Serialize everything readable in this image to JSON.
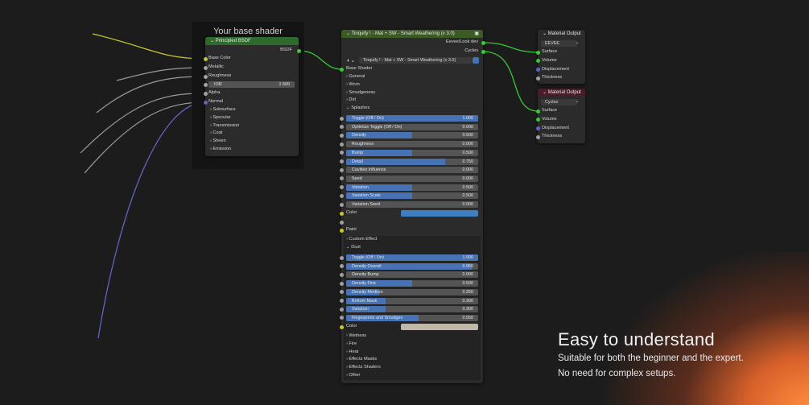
{
  "colors": {
    "socket_color": "#c7c729",
    "socket_float": "#a1a1a1",
    "socket_shader": "#39c939",
    "socket_vector": "#6363c7",
    "slider_fill": "#4772b3"
  },
  "frame": {
    "title": "Your base shader"
  },
  "principled": {
    "header": "Principled BSDF",
    "output": "BSDF",
    "inputs": [
      "Base Color",
      "Metallic",
      "Roughness"
    ],
    "ior_label": "IOR",
    "ior_value": "1.500",
    "inputs2": [
      "Alpha",
      "Normal"
    ],
    "panels": [
      "Subsurface",
      "Specular",
      "Transmission",
      "Coat",
      "Sheen",
      "Emission"
    ]
  },
  "group": {
    "header": "Tinquify ! - Mat + SW - Smart Weathering (v 3.0)",
    "outputs": [
      "Eevee/Look dev",
      "Cycles"
    ],
    "selector": "Tinquify ! - Mat + SW - Smart Weathering (v 3.0)",
    "base_shader": "Base Shader",
    "panels": [
      "General",
      "Worn",
      "Smudgeness",
      "Dirt"
    ],
    "splashes": "Splashes",
    "splash_sliders": [
      {
        "label": "Toggle (Off / On)",
        "value": "1.000",
        "fill": 1
      },
      {
        "label": "Optimize Toggle (Off / On)",
        "value": "0.000",
        "fill": 0
      },
      {
        "label": "Density",
        "value": "0.500",
        "fill": 0.5
      },
      {
        "label": "Roughness",
        "value": "0.000",
        "fill": 0
      },
      {
        "label": "Bump",
        "value": "0.500",
        "fill": 0.5
      },
      {
        "label": "Detail",
        "value": "0.750",
        "fill": 0.75
      },
      {
        "label": "Cavities Influence",
        "value": "0.000",
        "fill": 0
      },
      {
        "label": "Seed",
        "value": "0.000",
        "fill": 0
      },
      {
        "label": "Variation",
        "value": "0.500",
        "fill": 0.5
      },
      {
        "label": "Variation Scale",
        "value": "0.500",
        "fill": 0.5
      },
      {
        "label": "Variation Seed",
        "value": "0.000",
        "fill": 0
      }
    ],
    "color_label": "Color",
    "splash_color": "#3d7fc0",
    "paint": "Paint",
    "custom_effect": "Custom Effect",
    "dust": "Dust",
    "dust_sliders": [
      {
        "label": "Toggle (Off / On)",
        "value": "1.000",
        "fill": 1
      },
      {
        "label": "Density Overall",
        "value": "0.950",
        "fill": 0.95
      },
      {
        "label": "Density Bump",
        "value": "0.000",
        "fill": 0
      },
      {
        "label": "Density Fine",
        "value": "0.500",
        "fill": 0.5
      },
      {
        "label": "Density Medium",
        "value": "0.250",
        "fill": 0.25
      },
      {
        "label": "Bottom Mask",
        "value": "0.300",
        "fill": 0.3
      },
      {
        "label": "Variation",
        "value": "0.300",
        "fill": 0.3
      },
      {
        "label": "Fingerprints and Smudges",
        "value": "0.550",
        "fill": 0.55
      }
    ],
    "dust_color": "#c1b6aa",
    "more_panels": [
      "Wetness",
      "Fire",
      "Heat",
      "Effects Masks",
      "Effects Shaders",
      "Other"
    ]
  },
  "outputs": [
    {
      "header": "Material Output",
      "target": "EEVEE",
      "header_color": "#2b2b2b",
      "inputs": [
        "Surface",
        "Volume",
        "Displacement",
        "Thickness"
      ]
    },
    {
      "header": "Material Output",
      "target": "Cycles",
      "header_color": "#4a1e26",
      "inputs": [
        "Surface",
        "Volume",
        "Displacement",
        "Thickness"
      ]
    }
  ],
  "promo": {
    "headline": "Easy to understand",
    "line1": "Suitable for both the beginner and the expert.",
    "line2": "No need for complex setups."
  }
}
